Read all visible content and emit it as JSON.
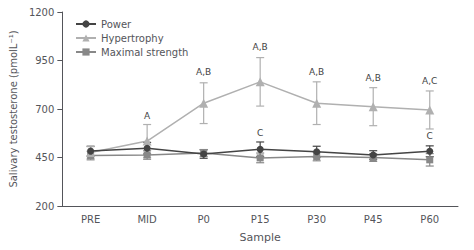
{
  "chart_data": {
    "type": "line",
    "xlabel": "Sample",
    "ylabel": "Salivary testosterone (pmolL⁻¹)",
    "categories": [
      "PRE",
      "MID",
      "P0",
      "P15",
      "P30",
      "P45",
      "P60"
    ],
    "series": [
      {
        "name": "Power",
        "color": "#444444",
        "marker": "circle",
        "values": [
          483,
          498,
          468,
          492,
          480,
          463,
          482
        ],
        "errors": [
          25,
          30,
          22,
          38,
          28,
          22,
          28
        ]
      },
      {
        "name": "Hypertrophy",
        "color": "#b0b0b0",
        "marker": "triangle",
        "values": [
          476,
          535,
          730,
          840,
          730,
          712,
          695
        ],
        "errors": [
          30,
          85,
          105,
          125,
          110,
          98,
          98
        ]
      },
      {
        "name": "Maximal strength",
        "color": "#888888",
        "marker": "square",
        "values": [
          460,
          463,
          473,
          448,
          455,
          450,
          438
        ],
        "errors": [
          22,
          22,
          18,
          25,
          22,
          20,
          32
        ]
      }
    ],
    "annotations": [
      {
        "text": "A",
        "x": "MID",
        "y": 640
      },
      {
        "text": "A,B",
        "x": "P0",
        "y": 870
      },
      {
        "text": "A,B",
        "x": "P15",
        "y": 995
      },
      {
        "text": "A,B",
        "x": "P30",
        "y": 870
      },
      {
        "text": "A,B",
        "x": "P45",
        "y": 838
      },
      {
        "text": "A,C",
        "x": "P60",
        "y": 822
      },
      {
        "text": "C",
        "x": "P15",
        "y": 552
      },
      {
        "text": "C",
        "x": "P60",
        "y": 540
      }
    ],
    "ylim": [
      200,
      1200
    ],
    "yticks": [
      200,
      450,
      700,
      950,
      1200
    ],
    "grid": false,
    "legend": "upper left"
  }
}
